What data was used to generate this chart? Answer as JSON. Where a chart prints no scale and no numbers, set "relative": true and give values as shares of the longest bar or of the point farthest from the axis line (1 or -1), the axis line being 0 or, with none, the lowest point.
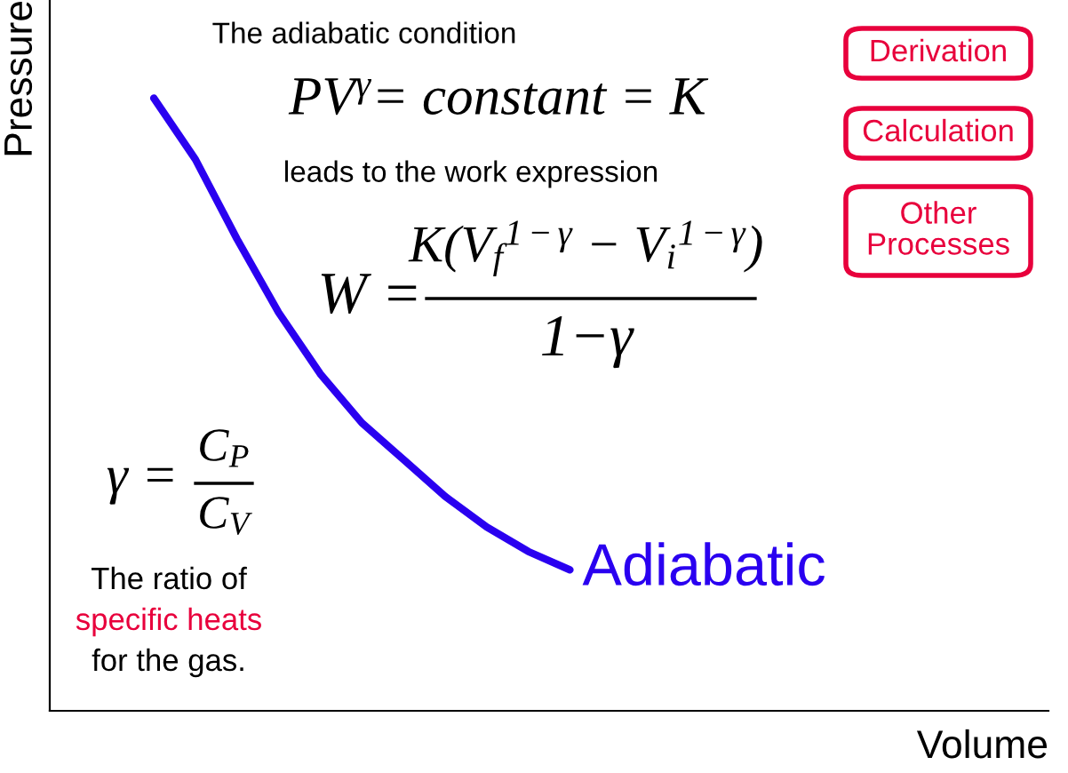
{
  "chart_data": {
    "type": "line",
    "relative": true,
    "xlabel": "Volume",
    "ylabel": "Pressure",
    "categories": [
      null,
      null,
      null,
      null,
      null,
      null,
      null,
      null,
      null,
      null,
      null,
      null,
      null,
      null,
      null,
      null,
      null,
      null,
      null,
      null,
      null,
      null,
      null,
      null
    ],
    "series": [
      {
        "name": "Adiabatic",
        "color": "#2a00f0",
        "values": [
          null,
          null,
          1.0,
          0.9,
          0.77,
          0.65,
          0.55,
          0.47,
          0.41,
          0.35,
          0.3,
          0.26,
          0.23,
          null,
          null,
          null,
          null,
          null,
          null,
          null,
          null,
          null,
          null,
          null
        ]
      }
    ],
    "marker": "none",
    "line_style": "solid",
    "grid": false,
    "legend": false,
    "annotations": [
      "The adiabatic condition",
      "PV$^{γ}$= constant = K",
      "leads to the work expression",
      "W =",
      "K(V$_{f}$$^{1−γ}$ − V$_{i}$$^{1−γ}$)",
      "1−γ",
      "γ =",
      "C$_{P}$",
      "C$_{V}$",
      "The ratio of",
      "specific heats",
      "for the gas.",
      "Derivation",
      "Calculation",
      "Other\nProcesses"
    ]
  }
}
